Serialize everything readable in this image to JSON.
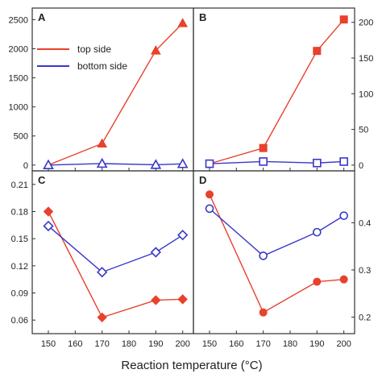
{
  "colors": {
    "top_side": "#e8412c",
    "bottom_side": "#3838c8",
    "frame": "#333333"
  },
  "figure": {
    "xlabel": "Reaction temperature (°C)",
    "legend": {
      "top": "top side",
      "bottom": "bottom side"
    }
  },
  "chart_data": [
    {
      "type": "line",
      "panel": "A",
      "x": [
        150,
        170,
        190,
        200
      ],
      "xticks": [
        150,
        160,
        170,
        180,
        190,
        200
      ],
      "ylim": [
        -100,
        2700
      ],
      "yticks": [
        0,
        500,
        1000,
        1500,
        2000,
        2500
      ],
      "ytick_side": "left",
      "series": [
        {
          "name": "top side",
          "marker": "filled-triangle",
          "color": "#e8412c",
          "values": [
            0,
            370,
            1970,
            2440
          ]
        },
        {
          "name": "bottom side",
          "marker": "open-triangle",
          "color": "#3838c8",
          "values": [
            0,
            25,
            5,
            20
          ]
        }
      ]
    },
    {
      "type": "line",
      "panel": "B",
      "x": [
        150,
        170,
        190,
        200
      ],
      "xticks": [
        150,
        160,
        170,
        180,
        190,
        200
      ],
      "ylim": [
        -8,
        220
      ],
      "yticks": [
        0,
        50,
        100,
        150,
        200
      ],
      "ytick_side": "right",
      "series": [
        {
          "name": "top side",
          "marker": "filled-square",
          "color": "#e8412c",
          "values": [
            2,
            24,
            160,
            204
          ]
        },
        {
          "name": "bottom side",
          "marker": "open-square",
          "color": "#3838c8",
          "values": [
            2,
            5,
            3,
            5
          ]
        }
      ]
    },
    {
      "type": "line",
      "panel": "C",
      "x": [
        150,
        170,
        190,
        200
      ],
      "xticks": [
        150,
        160,
        170,
        180,
        190,
        200
      ],
      "xtick_labels": [
        "150",
        "160",
        "170",
        "180",
        "190",
        "200"
      ],
      "ylim": [
        0.045,
        0.225
      ],
      "yticks": [
        0.06,
        0.09,
        0.12,
        0.15,
        0.18,
        0.21
      ],
      "ytick_side": "left",
      "series": [
        {
          "name": "top side",
          "marker": "filled-diamond",
          "color": "#e8412c",
          "values": [
            0.18,
            0.063,
            0.082,
            0.083
          ]
        },
        {
          "name": "bottom side",
          "marker": "open-diamond",
          "color": "#3838c8",
          "values": [
            0.164,
            0.113,
            0.135,
            0.154
          ]
        }
      ]
    },
    {
      "type": "line",
      "panel": "D",
      "x": [
        150,
        170,
        190,
        200
      ],
      "xticks": [
        150,
        160,
        170,
        180,
        190,
        200
      ],
      "xtick_labels": [
        "150",
        "160",
        "170",
        "180",
        "190",
        "200"
      ],
      "ylim": [
        0.165,
        0.51
      ],
      "yticks": [
        0.2,
        0.3,
        0.4
      ],
      "ytick_labels": [
        "0.2",
        "0.3",
        "0.4"
      ],
      "ytick_side": "right",
      "series": [
        {
          "name": "top side",
          "marker": "filled-circle",
          "color": "#e8412c",
          "values": [
            0.46,
            0.21,
            0.275,
            0.28
          ]
        },
        {
          "name": "bottom side",
          "marker": "open-circle",
          "color": "#3838c8",
          "values": [
            0.43,
            0.33,
            0.38,
            0.415
          ]
        }
      ]
    }
  ]
}
